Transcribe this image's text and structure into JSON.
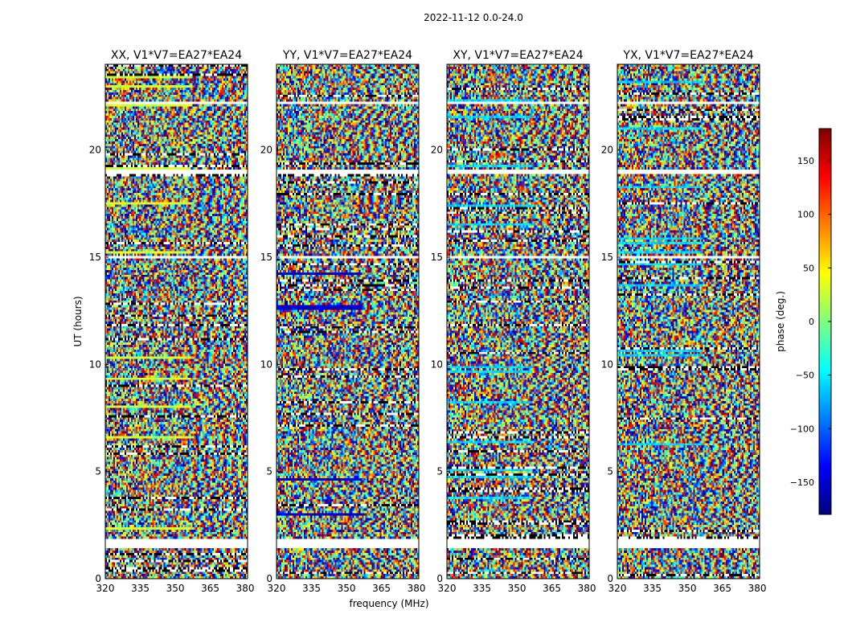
{
  "figure": {
    "suptitle": "2022-11-12 0.0-24.0",
    "ylabel": "UT (hours)",
    "xlabel": "frequency (MHz)",
    "colorbar_label": "phase (deg.)",
    "colorbar_ticks": [
      150,
      100,
      50,
      0,
      -50,
      -100,
      -150
    ],
    "colorbar_range": [
      -180,
      180
    ],
    "colormap": "jet",
    "colormap_colors": [
      "#00007f",
      "#0000ff",
      "#007fff",
      "#00ffff",
      "#7fff7f",
      "#ffff00",
      "#ff7f00",
      "#ff0000",
      "#7f0000"
    ],
    "flagged_color": "#ffffff"
  },
  "chart_data": [
    {
      "type": "heatmap",
      "title": "XX, V1*V7=EA27*EA24",
      "xlim": [
        320,
        381
      ],
      "ylim": [
        0,
        24
      ],
      "xticks": [
        320,
        335,
        350,
        365,
        380
      ],
      "yticks": [
        0,
        5,
        10,
        15,
        20
      ],
      "z_quantity": "phase (deg.)",
      "flagged_ut_hours": [
        [
          1.4,
          1.8
        ],
        [
          15.0,
          15.1
        ],
        [
          18.9,
          19.1
        ],
        [
          22.1,
          22.3
        ]
      ]
    },
    {
      "type": "heatmap",
      "title": "YY, V1*V7=EA27*EA24",
      "xlim": [
        320,
        381
      ],
      "ylim": [
        0,
        24
      ],
      "xticks": [
        320,
        335,
        350,
        365,
        380
      ],
      "yticks": [
        0,
        5,
        10,
        15,
        20
      ],
      "z_quantity": "phase (deg.)",
      "flagged_ut_hours": [
        [
          1.4,
          1.8
        ],
        [
          15.0,
          15.1
        ],
        [
          18.9,
          19.1
        ],
        [
          22.1,
          22.3
        ]
      ]
    },
    {
      "type": "heatmap",
      "title": "XY, V1*V7=EA27*EA24",
      "xlim": [
        320,
        381
      ],
      "ylim": [
        0,
        24
      ],
      "xticks": [
        320,
        335,
        350,
        365,
        380
      ],
      "yticks": [
        0,
        5,
        10,
        15,
        20
      ],
      "z_quantity": "phase (deg.)",
      "flagged_ut_hours": [
        [
          1.4,
          1.8
        ],
        [
          15.0,
          15.1
        ],
        [
          18.9,
          19.1
        ],
        [
          22.1,
          22.3
        ]
      ]
    },
    {
      "type": "heatmap",
      "title": "YX, V1*V7=EA27*EA24",
      "xlim": [
        320,
        381
      ],
      "ylim": [
        0,
        24
      ],
      "xticks": [
        320,
        335,
        350,
        365,
        380
      ],
      "yticks": [
        0,
        5,
        10,
        15,
        20
      ],
      "z_quantity": "phase (deg.)",
      "flagged_ut_hours": [
        [
          1.4,
          1.8
        ],
        [
          15.0,
          15.1
        ],
        [
          18.9,
          19.1
        ],
        [
          22.1,
          22.3
        ]
      ]
    }
  ]
}
